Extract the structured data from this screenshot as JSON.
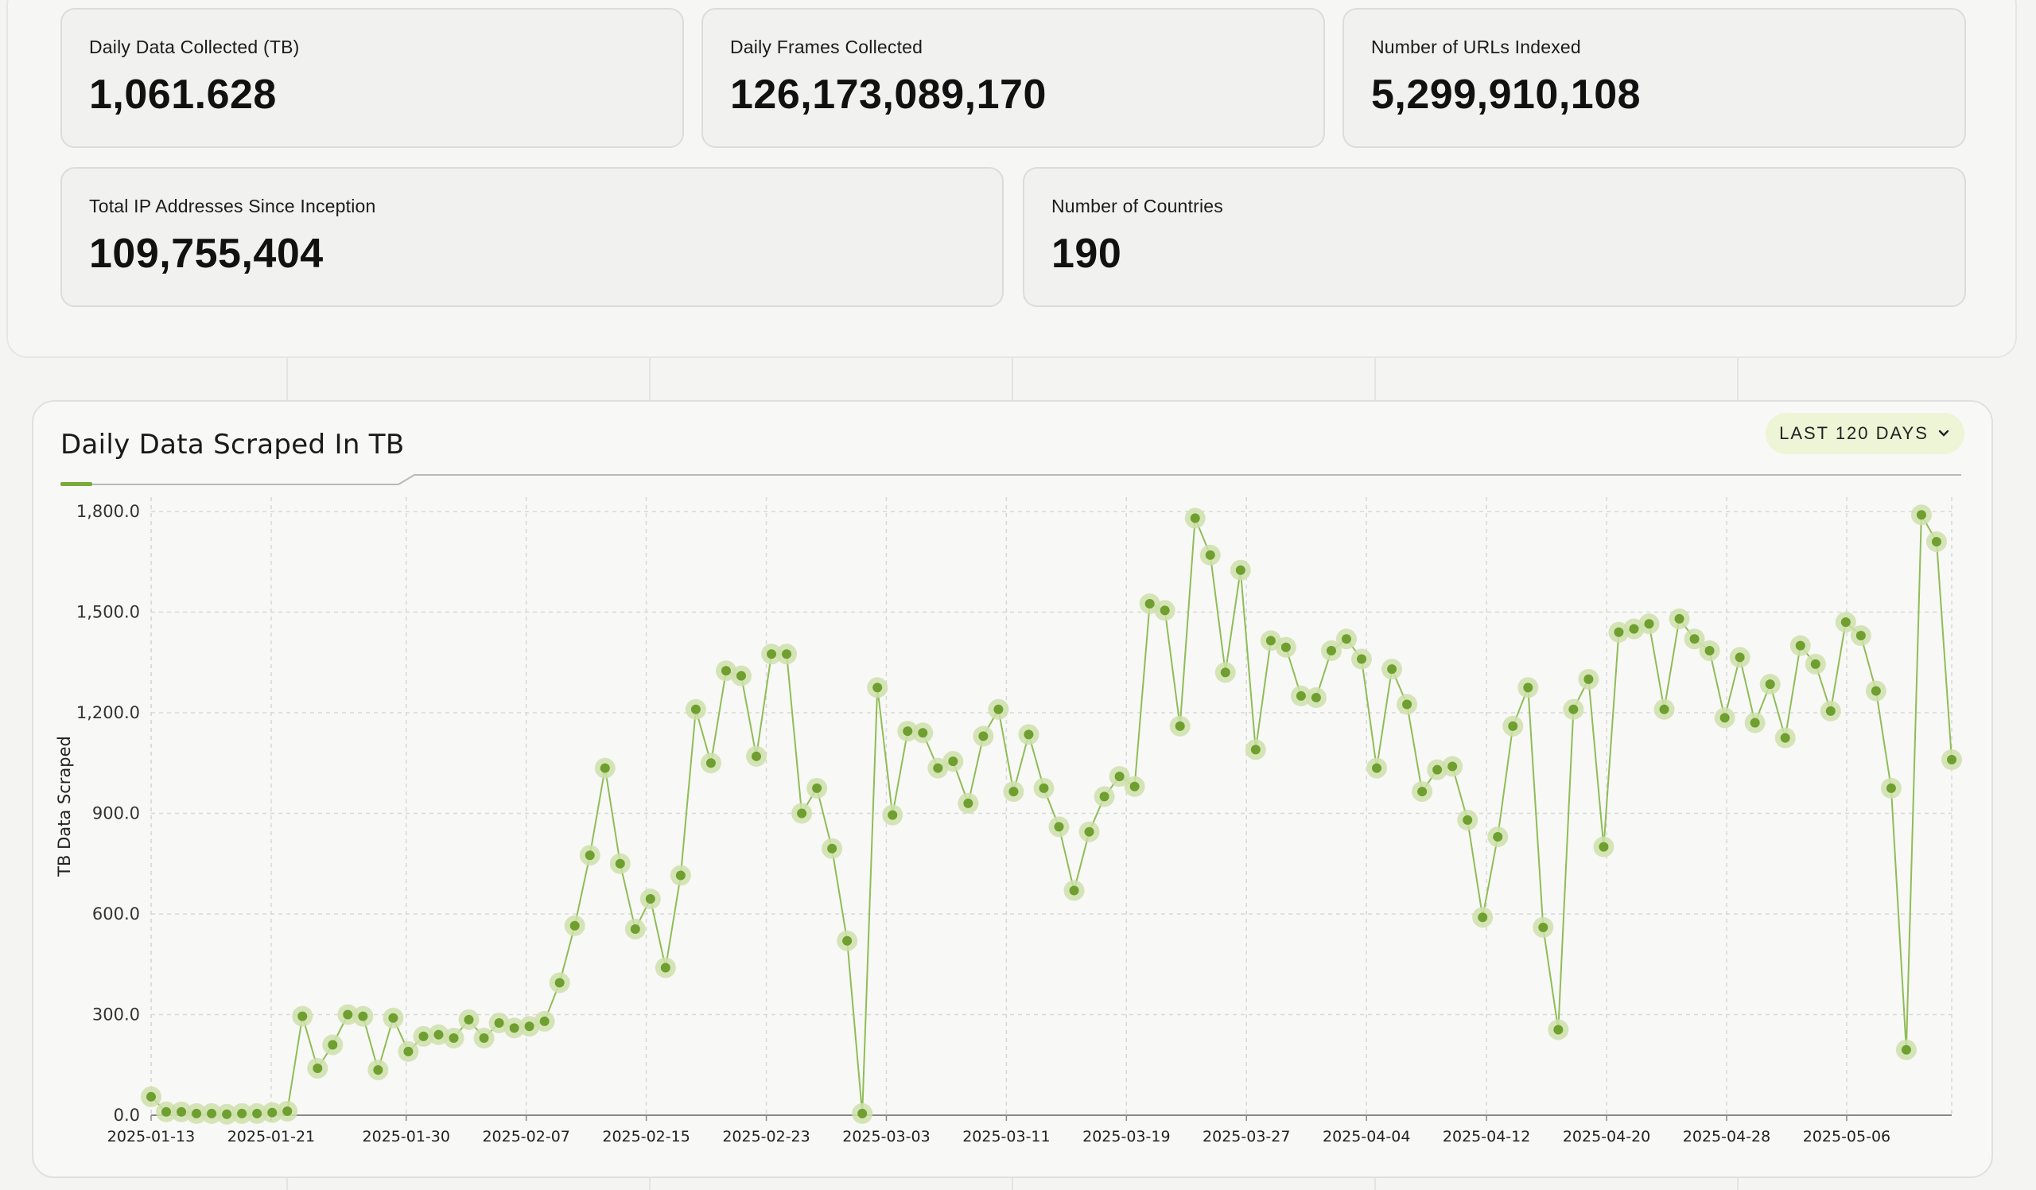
{
  "stats": [
    {
      "label": "Daily Data Collected (TB)",
      "value": "1,061.628"
    },
    {
      "label": "Daily Frames Collected",
      "value": "126,173,089,170"
    },
    {
      "label": "Number of URLs Indexed",
      "value": "5,299,910,108"
    },
    {
      "label": "Total IP Addresses Since Inception",
      "value": "109,755,404"
    },
    {
      "label": "Number of Countries",
      "value": "190"
    }
  ],
  "chart_panel": {
    "title": "Daily Data Scraped In TB",
    "range_button_label": "LAST 120 DAYS",
    "range_button_icon": "chevron-down-icon"
  },
  "chart_data": {
    "type": "line",
    "title": "Daily Data Scraped In TB",
    "xlabel": "",
    "ylabel": "TB Data Scraped",
    "ylim": [
      0,
      1800
    ],
    "yticks": [
      "0.0",
      "300.0",
      "600.0",
      "900.0",
      "1,200.0",
      "1,500.0",
      "1,800.0"
    ],
    "xticks": [
      "2025-01-13",
      "2025-01-21",
      "2025-01-30",
      "2025-02-07",
      "2025-02-15",
      "2025-02-23",
      "2025-03-03",
      "2025-03-11",
      "2025-03-19",
      "2025-03-27",
      "2025-04-04",
      "2025-04-12",
      "2025-04-20",
      "2025-04-28",
      "2025-05-06"
    ],
    "grid": true,
    "color": "#7aab3a",
    "x_start": "2025-01-13",
    "x_end": "2025-05-13",
    "values": [
      55,
      10,
      10,
      5,
      5,
      3,
      5,
      5,
      8,
      12,
      295,
      140,
      210,
      300,
      295,
      135,
      290,
      190,
      235,
      240,
      230,
      285,
      230,
      275,
      260,
      265,
      280,
      395,
      565,
      775,
      1035,
      750,
      555,
      645,
      440,
      715,
      1210,
      1050,
      1325,
      1310,
      1070,
      1375,
      1375,
      900,
      975,
      795,
      520,
      5,
      1275,
      895,
      1145,
      1140,
      1035,
      1055,
      930,
      1130,
      1210,
      965,
      1135,
      975,
      860,
      670,
      845,
      950,
      1010,
      980,
      1525,
      1505,
      1160,
      1780,
      1670,
      1320,
      1625,
      1090,
      1415,
      1395,
      1250,
      1245,
      1385,
      1420,
      1360,
      1035,
      1330,
      1225,
      965,
      1030,
      1040,
      880,
      590,
      830,
      1160,
      1275,
      560,
      255,
      1210,
      1300,
      800,
      1440,
      1450,
      1465,
      1210,
      1480,
      1420,
      1385,
      1185,
      1365,
      1170,
      1285,
      1125,
      1400,
      1345,
      1205,
      1470,
      1430,
      1265,
      975,
      195,
      1790,
      1710,
      1060
    ]
  }
}
